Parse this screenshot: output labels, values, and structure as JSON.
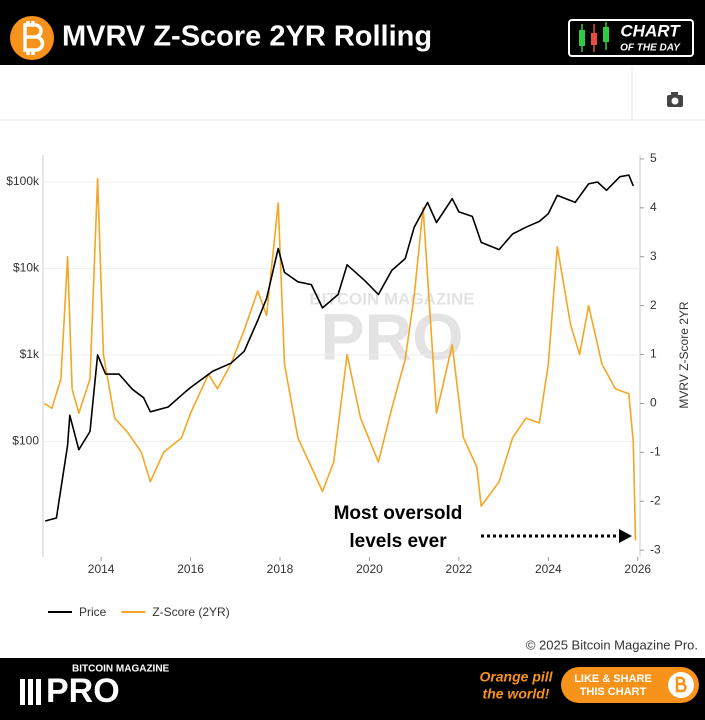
{
  "header": {
    "title": "MVRV Z-Score 2YR Rolling",
    "badge": [
      "CHART",
      "OF THE DAY"
    ]
  },
  "chart_data": {
    "type": "line",
    "log_y": true,
    "grid": true,
    "legend": "bottom-left",
    "y2label": "MVRV Z-Score 2YR",
    "xlim": [
      2012.7,
      2026.05
    ],
    "xticks": [
      2014,
      2016,
      2018,
      2020,
      2022,
      2024,
      2026
    ],
    "ylim": [
      4.6,
      205000
    ],
    "yticks": [
      {
        "value": 100,
        "label": "$100"
      },
      {
        "value": 1000,
        "label": "$1k"
      },
      {
        "value": 10000,
        "label": "$10k"
      },
      {
        "value": 100000,
        "label": "$100k"
      }
    ],
    "y2lim": [
      -3.14,
      5.08
    ],
    "y2ticks": [
      -3,
      -2,
      -1,
      0,
      1,
      2,
      3,
      4,
      5
    ],
    "series": [
      {
        "name": "Price",
        "color": "#000000",
        "x": [
          2012.75,
          2013.0,
          2013.25,
          2013.3,
          2013.5,
          2013.75,
          2013.92,
          2014.1,
          2014.4,
          2014.7,
          2014.95,
          2015.1,
          2015.5,
          2015.9,
          2016.0,
          2016.5,
          2016.9,
          2017.2,
          2017.5,
          2017.7,
          2017.96,
          2018.1,
          2018.4,
          2018.7,
          2018.95,
          2019.3,
          2019.5,
          2019.9,
          2020.2,
          2020.5,
          2020.8,
          2021.0,
          2021.3,
          2021.5,
          2021.85,
          2022.0,
          2022.3,
          2022.5,
          2022.9,
          2023.2,
          2023.5,
          2023.8,
          2024.0,
          2024.2,
          2024.6,
          2024.9,
          2025.1,
          2025.3,
          2025.6,
          2025.8,
          2025.9
        ],
        "values": [
          12,
          13,
          90,
          200,
          80,
          130,
          1000,
          600,
          600,
          400,
          320,
          220,
          250,
          380,
          420,
          650,
          800,
          1100,
          2500,
          4500,
          17000,
          9000,
          7000,
          6500,
          3500,
          5000,
          11000,
          7200,
          5000,
          9500,
          13000,
          30000,
          58000,
          34000,
          64000,
          45000,
          40000,
          20000,
          16500,
          25000,
          30000,
          35000,
          43000,
          70000,
          58000,
          95000,
          100000,
          80000,
          115000,
          120000,
          90000
        ]
      },
      {
        "name": "Z-Score (2YR)",
        "color": "#f5a623",
        "axis": "y2",
        "x": [
          2012.73,
          2012.9,
          2013.1,
          2013.25,
          2013.35,
          2013.5,
          2013.75,
          2013.92,
          2014.05,
          2014.3,
          2014.6,
          2014.9,
          2015.1,
          2015.4,
          2015.8,
          2016.0,
          2016.4,
          2016.6,
          2016.9,
          2017.2,
          2017.5,
          2017.7,
          2017.96,
          2018.1,
          2018.4,
          2018.7,
          2018.95,
          2019.2,
          2019.5,
          2019.8,
          2020.2,
          2020.5,
          2020.8,
          2021.0,
          2021.2,
          2021.5,
          2021.85,
          2022.1,
          2022.4,
          2022.5,
          2022.9,
          2023.2,
          2023.5,
          2023.8,
          2024.0,
          2024.2,
          2024.5,
          2024.7,
          2024.9,
          2025.2,
          2025.5,
          2025.8,
          2025.9,
          2025.95
        ],
        "values": [
          0,
          -0.1,
          0.5,
          3.0,
          0.3,
          -0.2,
          0.5,
          4.6,
          1.0,
          -0.3,
          -0.6,
          -1.0,
          -1.6,
          -1.0,
          -0.7,
          -0.2,
          0.6,
          0.3,
          0.8,
          1.5,
          2.3,
          1.8,
          4.1,
          0.8,
          -0.7,
          -1.3,
          -1.8,
          -1.2,
          1.0,
          -0.3,
          -1.2,
          -0.1,
          0.9,
          2.2,
          4.0,
          -0.2,
          1.2,
          -0.7,
          -1.3,
          -2.1,
          -1.6,
          -0.7,
          -0.3,
          -0.4,
          0.8,
          3.2,
          1.6,
          1.0,
          2.0,
          0.8,
          0.3,
          0.2,
          -0.8,
          -2.8
        ]
      }
    ]
  },
  "watermark": [
    "BITCOIN MAGAZINE",
    "PRO"
  ],
  "annotation": [
    "Most oversold",
    "levels ever"
  ],
  "copyright": "© 2025 Bitcoin Magazine Pro.",
  "footer": {
    "brand_top": "BITCOIN MAGAZINE",
    "brand": "PRO",
    "slogan": [
      "Orange pill",
      "the world!"
    ],
    "button": [
      "LIKE & SHARE",
      "THIS CHART"
    ]
  }
}
